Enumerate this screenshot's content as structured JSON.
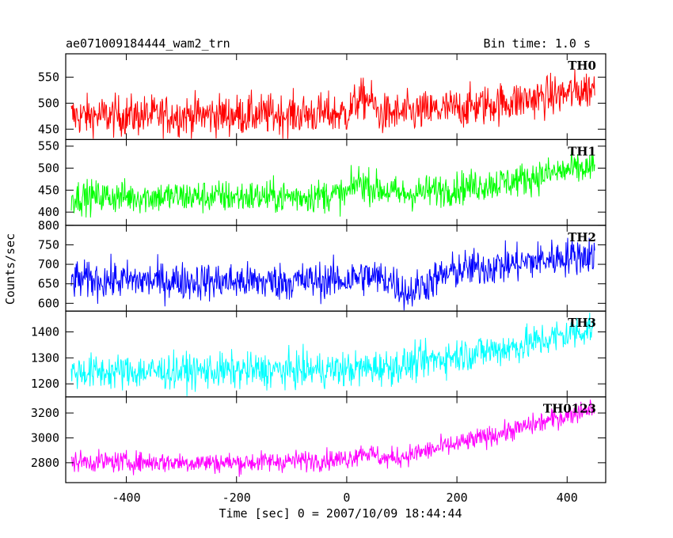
{
  "header": {
    "title_left": "ae071009184444_wam2_trn",
    "title_right": "Bin time: 1.0 s"
  },
  "chart_data": {
    "type": "line",
    "xlabel": "Time [sec] 0 = 2007/10/09 18:44:44",
    "ylabel": "Counts/sec",
    "xlim": [
      -510,
      470
    ],
    "x_ticks": [
      -400,
      -200,
      0,
      200,
      400
    ],
    "x_range_data": [
      -500,
      450
    ],
    "series": [
      {
        "name": "TH0",
        "color": "#ff0000",
        "ylim": [
          430,
          595
        ],
        "y_ticks": [
          450,
          500,
          550
        ],
        "profile": [
          [
            -500,
            475
          ],
          [
            -150,
            478
          ],
          [
            0,
            480
          ],
          [
            20,
            505
          ],
          [
            40,
            510
          ],
          [
            60,
            478
          ],
          [
            100,
            480
          ],
          [
            200,
            490
          ],
          [
            300,
            503
          ],
          [
            400,
            518
          ],
          [
            450,
            530
          ]
        ],
        "noise": 26
      },
      {
        "name": "TH1",
        "color": "#00ff00",
        "ylim": [
          370,
          565
        ],
        "y_ticks": [
          400,
          450,
          500,
          550
        ],
        "profile": [
          [
            -500,
            435
          ],
          [
            -100,
            435
          ],
          [
            0,
            440
          ],
          [
            20,
            470
          ],
          [
            50,
            455
          ],
          [
            100,
            440
          ],
          [
            200,
            455
          ],
          [
            300,
            470
          ],
          [
            400,
            495
          ],
          [
            450,
            500
          ]
        ],
        "noise": 25
      },
      {
        "name": "TH2",
        "color": "#0000ff",
        "ylim": [
          580,
          800
        ],
        "y_ticks": [
          600,
          650,
          700,
          750,
          800
        ],
        "profile": [
          [
            -500,
            660
          ],
          [
            -150,
            655
          ],
          [
            0,
            660
          ],
          [
            30,
            670
          ],
          [
            80,
            660
          ],
          [
            110,
            625
          ],
          [
            150,
            655
          ],
          [
            200,
            685
          ],
          [
            300,
            700
          ],
          [
            400,
            720
          ],
          [
            450,
            725
          ]
        ],
        "noise": 32
      },
      {
        "name": "TH3",
        "color": "#00ffff",
        "ylim": [
          1150,
          1480
        ],
        "y_ticks": [
          1200,
          1300,
          1400
        ],
        "profile": [
          [
            -500,
            1245
          ],
          [
            -200,
            1250
          ],
          [
            0,
            1255
          ],
          [
            100,
            1270
          ],
          [
            200,
            1310
          ],
          [
            300,
            1340
          ],
          [
            400,
            1390
          ],
          [
            450,
            1420
          ]
        ],
        "noise": 45
      },
      {
        "name": "TH0123",
        "color": "#ff00ff",
        "ylim": [
          2640,
          3330
        ],
        "y_ticks": [
          2800,
          3000,
          3200
        ],
        "profile": [
          [
            -500,
            2810
          ],
          [
            -200,
            2800
          ],
          [
            0,
            2830
          ],
          [
            30,
            2890
          ],
          [
            70,
            2830
          ],
          [
            100,
            2850
          ],
          [
            200,
            2950
          ],
          [
            300,
            3060
          ],
          [
            400,
            3180
          ],
          [
            450,
            3260
          ]
        ],
        "noise": 55
      }
    ]
  }
}
